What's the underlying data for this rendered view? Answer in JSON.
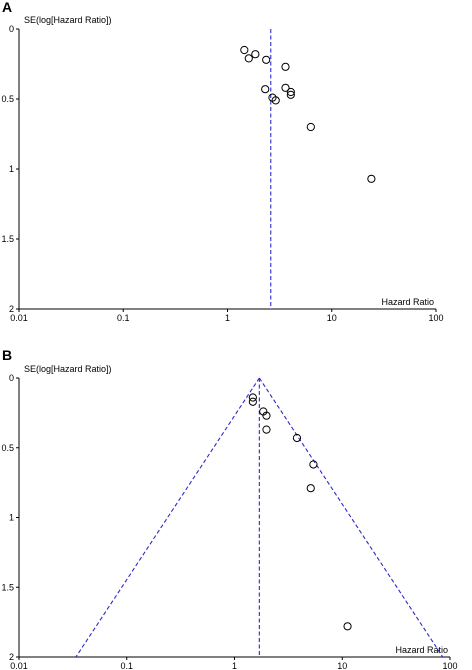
{
  "chart_data": [
    {
      "type": "scatter",
      "subtype": "funnel-plot",
      "panel_label": "A",
      "ylabel": "SE(log[Hazard Ratio])",
      "xlabel": "Hazard Ratio",
      "x_scale": "log",
      "y_inverted": true,
      "xlim": [
        0.01,
        100
      ],
      "ylim": [
        0,
        2
      ],
      "x_ticks": [
        "0.01",
        "0.1",
        "1",
        "10",
        "100"
      ],
      "y_ticks": [
        "0",
        "0.5",
        "1",
        "1.5",
        "2"
      ],
      "pooled_estimate": 2.6,
      "funnel_lines": false,
      "colors": {
        "reference_line": "#2b2bc8",
        "points": "#000000",
        "axes": "#000000"
      },
      "points": [
        {
          "x": 1.45,
          "y": 0.15
        },
        {
          "x": 1.6,
          "y": 0.21
        },
        {
          "x": 1.85,
          "y": 0.18
        },
        {
          "x": 2.35,
          "y": 0.22
        },
        {
          "x": 3.6,
          "y": 0.27
        },
        {
          "x": 2.3,
          "y": 0.43
        },
        {
          "x": 3.6,
          "y": 0.42
        },
        {
          "x": 4.05,
          "y": 0.45
        },
        {
          "x": 4.05,
          "y": 0.47
        },
        {
          "x": 2.7,
          "y": 0.49
        },
        {
          "x": 2.9,
          "y": 0.51
        },
        {
          "x": 6.3,
          "y": 0.7
        },
        {
          "x": 24.0,
          "y": 1.07
        }
      ]
    },
    {
      "type": "scatter",
      "subtype": "funnel-plot",
      "panel_label": "B",
      "ylabel": "SE(log[Hazard Ratio])",
      "xlabel": "Hazard Ratio",
      "x_scale": "log",
      "y_inverted": true,
      "xlim": [
        0.01,
        100
      ],
      "ylim": [
        0,
        2
      ],
      "x_ticks": [
        "0.01",
        "0.1",
        "1",
        "10",
        "100"
      ],
      "y_ticks": [
        "0",
        "0.5",
        "1",
        "1.5",
        "2"
      ],
      "pooled_estimate": 1.7,
      "funnel_lines": true,
      "colors": {
        "reference_line": "#2b2bc8",
        "points": "#000000",
        "axes": "#000000"
      },
      "points": [
        {
          "x": 1.48,
          "y": 0.14
        },
        {
          "x": 1.48,
          "y": 0.17
        },
        {
          "x": 1.85,
          "y": 0.24
        },
        {
          "x": 1.98,
          "y": 0.27
        },
        {
          "x": 1.98,
          "y": 0.37
        },
        {
          "x": 3.8,
          "y": 0.43
        },
        {
          "x": 5.4,
          "y": 0.62
        },
        {
          "x": 5.1,
          "y": 0.79
        },
        {
          "x": 11.2,
          "y": 1.78
        }
      ]
    }
  ]
}
